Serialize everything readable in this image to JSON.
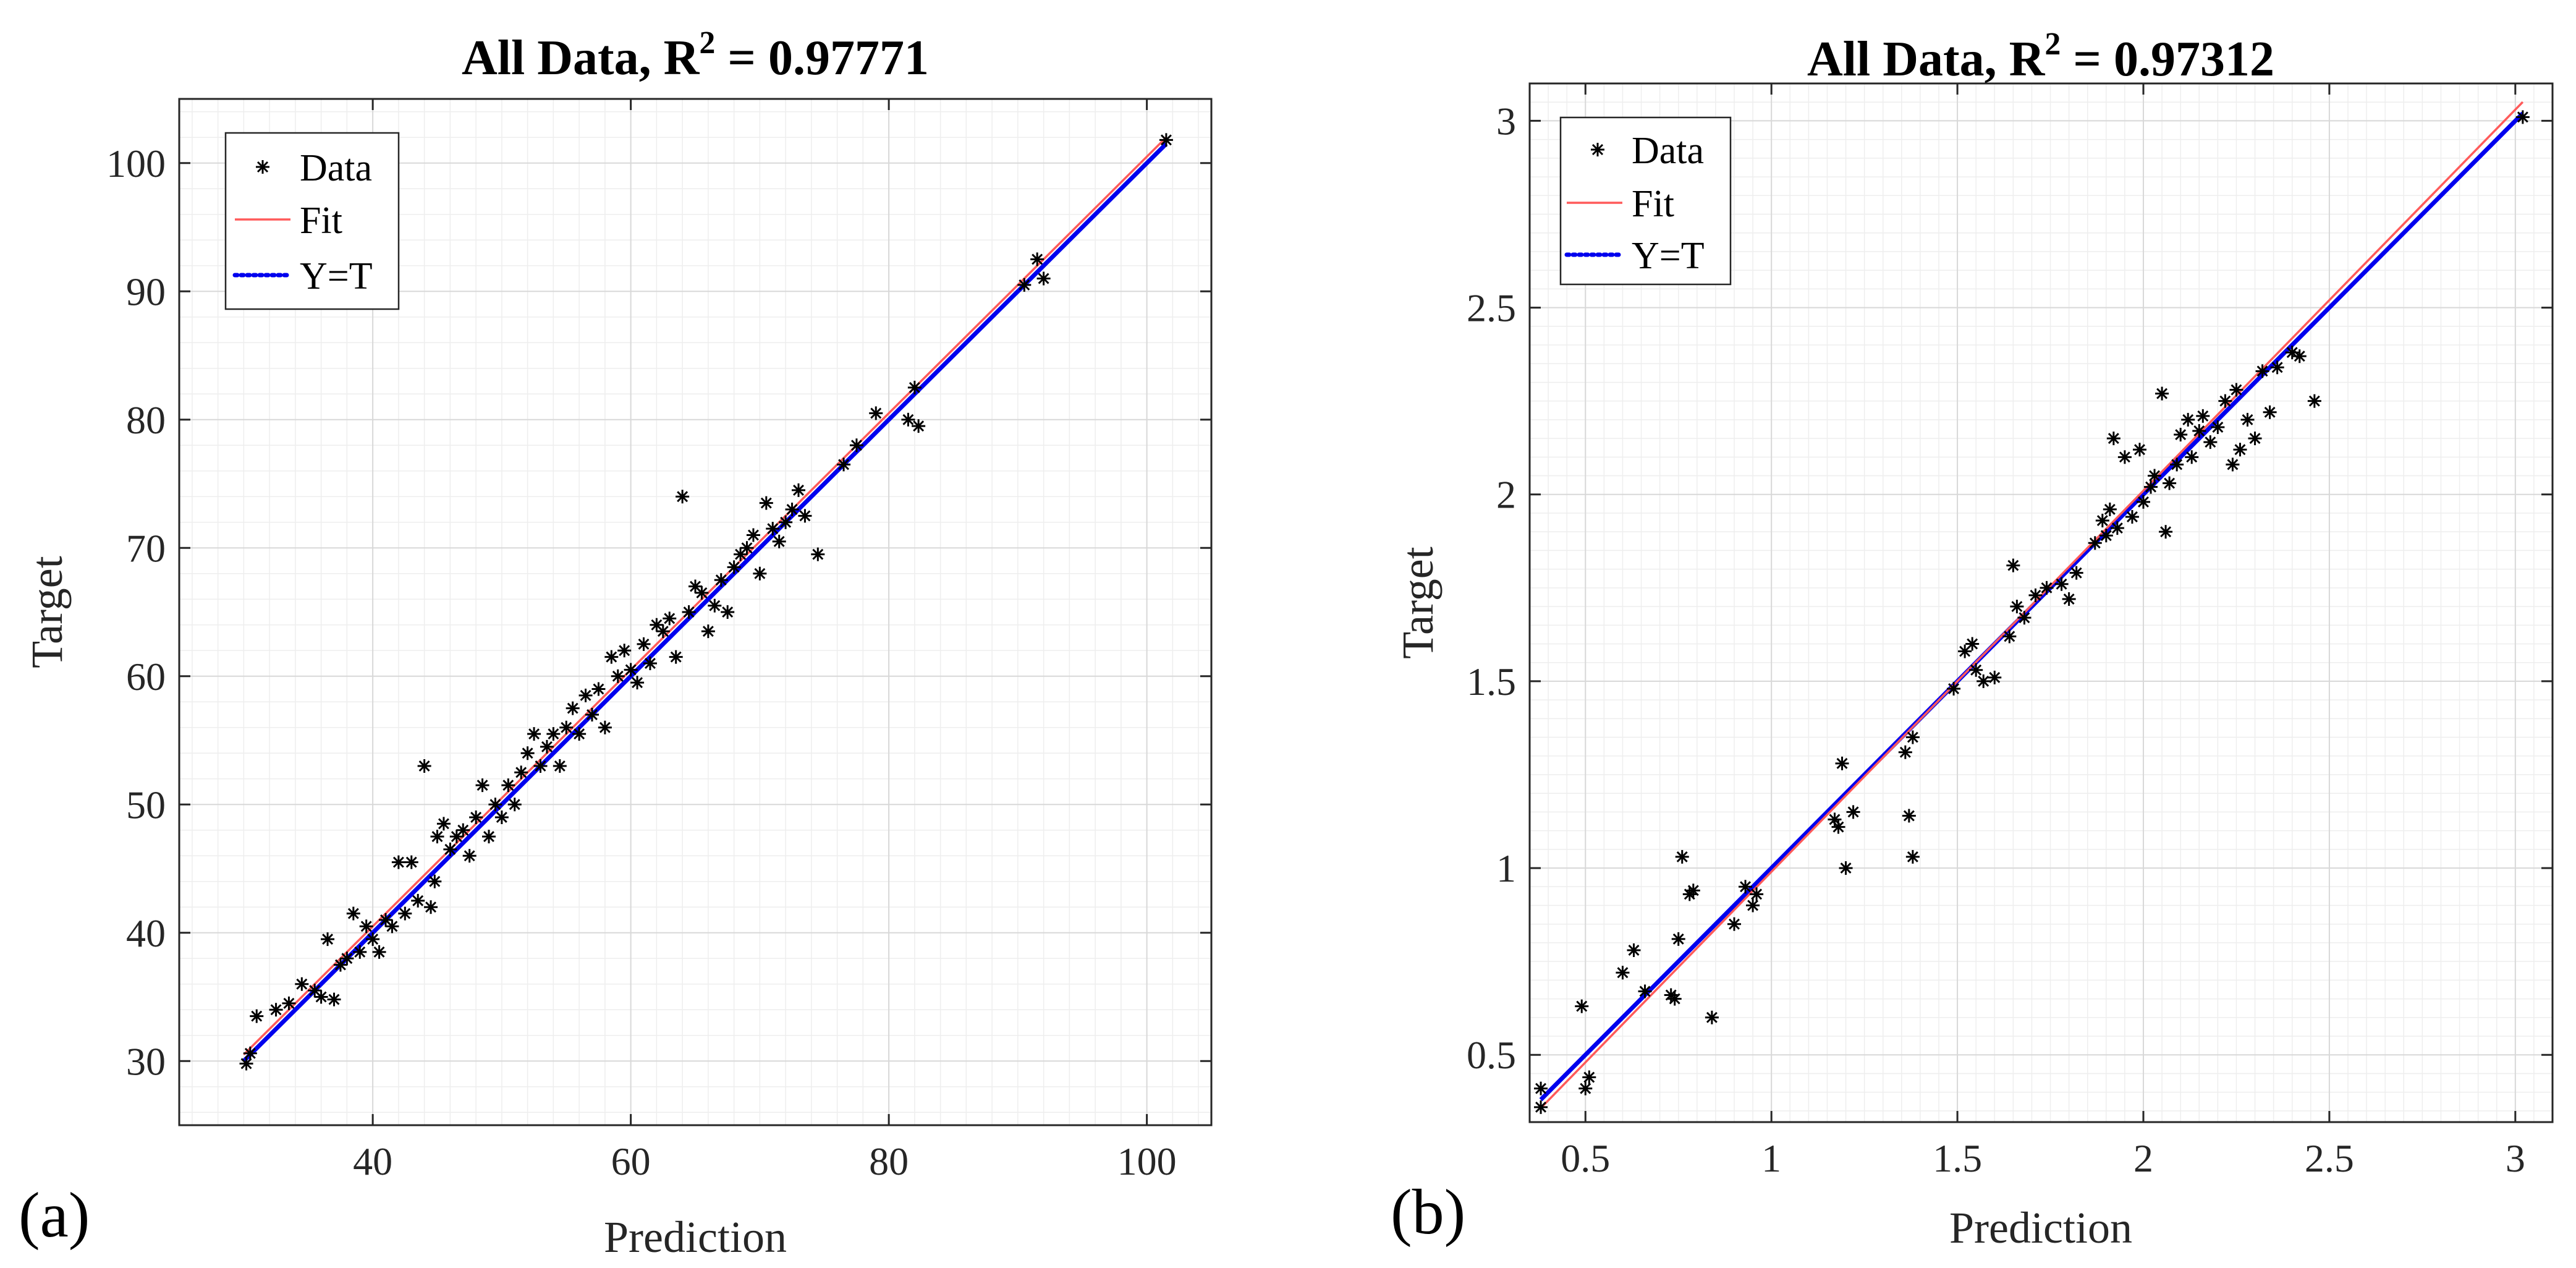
{
  "chart_data": [
    {
      "type": "scatter",
      "panel_label": "(a)",
      "title_prefix": "All Data, R",
      "title_sup": "2",
      "title_suffix": " = 0.97771",
      "xlabel": "Prediction",
      "ylabel": "Target",
      "xlim": [
        25,
        105
      ],
      "ylim": [
        25,
        105
      ],
      "xticks": [
        40,
        60,
        80,
        100
      ],
      "yticks": [
        30,
        40,
        50,
        60,
        70,
        80,
        90,
        100
      ],
      "legend": [
        "Data",
        "Fit",
        "Y=T"
      ],
      "legend_position": "top-left",
      "fit": {
        "slope": 1.0,
        "intercept": 0.5
      },
      "identity_range": [
        30,
        101.5
      ],
      "series": [
        {
          "name": "Data",
          "points": [
            [
              30.2,
              29.8
            ],
            [
              30.5,
              30.6
            ],
            [
              31.0,
              33.5
            ],
            [
              32.5,
              34.0
            ],
            [
              33.5,
              34.5
            ],
            [
              34.5,
              36.0
            ],
            [
              35.5,
              35.5
            ],
            [
              36.0,
              35.0
            ],
            [
              36.5,
              39.5
            ],
            [
              37.0,
              34.8
            ],
            [
              37.5,
              37.5
            ],
            [
              38.0,
              38.0
            ],
            [
              38.5,
              41.5
            ],
            [
              39.0,
              38.5
            ],
            [
              39.5,
              40.5
            ],
            [
              40.0,
              39.5
            ],
            [
              40.5,
              38.5
            ],
            [
              41.0,
              41.0
            ],
            [
              41.5,
              40.5
            ],
            [
              42.0,
              45.5
            ],
            [
              42.5,
              41.5
            ],
            [
              43.0,
              45.5
            ],
            [
              43.5,
              42.5
            ],
            [
              44.0,
              53.0
            ],
            [
              44.5,
              42.0
            ],
            [
              44.8,
              44.0
            ],
            [
              45.0,
              47.5
            ],
            [
              45.5,
              48.5
            ],
            [
              46.0,
              46.5
            ],
            [
              46.5,
              47.5
            ],
            [
              47.0,
              48.0
            ],
            [
              47.5,
              46.0
            ],
            [
              48.0,
              49.0
            ],
            [
              48.5,
              51.5
            ],
            [
              49.0,
              47.5
            ],
            [
              49.5,
              50.0
            ],
            [
              50.0,
              49.0
            ],
            [
              50.5,
              51.5
            ],
            [
              51.0,
              50.0
            ],
            [
              51.5,
              52.5
            ],
            [
              52.0,
              54.0
            ],
            [
              52.5,
              55.5
            ],
            [
              53.0,
              53.0
            ],
            [
              53.5,
              54.5
            ],
            [
              54.0,
              55.5
            ],
            [
              54.5,
              53.0
            ],
            [
              55.0,
              56.0
            ],
            [
              55.5,
              57.5
            ],
            [
              56.0,
              55.5
            ],
            [
              56.5,
              58.5
            ],
            [
              57.0,
              57.0
            ],
            [
              57.5,
              59.0
            ],
            [
              58.0,
              56.0
            ],
            [
              58.5,
              61.5
            ],
            [
              59.0,
              60.0
            ],
            [
              59.5,
              62.0
            ],
            [
              60.0,
              60.5
            ],
            [
              60.5,
              59.5
            ],
            [
              61.0,
              62.5
            ],
            [
              61.5,
              61.0
            ],
            [
              62.0,
              64.0
            ],
            [
              62.5,
              63.5
            ],
            [
              63.0,
              64.5
            ],
            [
              63.5,
              61.5
            ],
            [
              64.0,
              74.0
            ],
            [
              64.5,
              65.0
            ],
            [
              65.0,
              67.0
            ],
            [
              65.5,
              66.5
            ],
            [
              66.0,
              63.5
            ],
            [
              66.5,
              65.5
            ],
            [
              67.0,
              67.5
            ],
            [
              67.5,
              65.0
            ],
            [
              68.0,
              68.5
            ],
            [
              68.5,
              69.5
            ],
            [
              69.0,
              70.0
            ],
            [
              69.5,
              71.0
            ],
            [
              70.0,
              68.0
            ],
            [
              70.5,
              73.5
            ],
            [
              71.0,
              71.5
            ],
            [
              71.5,
              70.5
            ],
            [
              72.0,
              72.0
            ],
            [
              72.5,
              73.0
            ],
            [
              73.0,
              74.5
            ],
            [
              73.5,
              72.5
            ],
            [
              74.5,
              69.5
            ],
            [
              76.5,
              76.5
            ],
            [
              77.5,
              78.0
            ],
            [
              79.0,
              80.5
            ],
            [
              81.5,
              80.0
            ],
            [
              82.0,
              82.5
            ],
            [
              82.3,
              79.5
            ],
            [
              90.5,
              90.5
            ],
            [
              91.5,
              92.5
            ],
            [
              92.0,
              91.0
            ],
            [
              101.5,
              101.8
            ]
          ]
        }
      ]
    },
    {
      "type": "scatter",
      "panel_label": "(b)",
      "title_prefix": "All Data, R",
      "title_sup": "2",
      "title_suffix": " = 0.97312",
      "xlabel": "Prediction",
      "ylabel": "Target",
      "xlim": [
        0.35,
        3.1
      ],
      "ylim": [
        0.32,
        3.1
      ],
      "xticks": [
        0.5,
        1,
        1.5,
        2,
        2.5,
        3
      ],
      "xtick_labels": [
        "0.5",
        "1",
        "1.5",
        "2",
        "2.5",
        "3"
      ],
      "yticks": [
        0.5,
        1,
        1.5,
        2,
        2.5,
        3
      ],
      "ytick_labels": [
        "0.5",
        "1",
        "1.5",
        "2",
        "2.5",
        "3"
      ],
      "legend": [
        "Data",
        "Fit",
        "Y=T"
      ],
      "legend_position": "top-left",
      "fit": {
        "slope": 1.02,
        "intercept": -0.03
      },
      "identity_range": [
        0.38,
        3.02
      ],
      "series": [
        {
          "name": "Data",
          "points": [
            [
              0.38,
              0.36
            ],
            [
              0.38,
              0.41
            ],
            [
              0.49,
              0.63
            ],
            [
              0.5,
              0.41
            ],
            [
              0.51,
              0.44
            ],
            [
              0.6,
              0.72
            ],
            [
              0.63,
              0.78
            ],
            [
              0.66,
              0.67
            ],
            [
              0.73,
              0.66
            ],
            [
              0.74,
              0.65
            ],
            [
              0.75,
              0.81
            ],
            [
              0.76,
              1.03
            ],
            [
              0.78,
              0.93
            ],
            [
              0.79,
              0.94
            ],
            [
              0.84,
              0.6
            ],
            [
              0.9,
              0.85
            ],
            [
              0.93,
              0.95
            ],
            [
              0.95,
              0.9
            ],
            [
              0.96,
              0.93
            ],
            [
              1.17,
              1.13
            ],
            [
              1.18,
              1.11
            ],
            [
              1.19,
              1.28
            ],
            [
              1.2,
              1.0
            ],
            [
              1.22,
              1.15
            ],
            [
              1.36,
              1.31
            ],
            [
              1.37,
              1.14
            ],
            [
              1.38,
              1.03
            ],
            [
              1.38,
              1.35
            ],
            [
              1.49,
              1.48
            ],
            [
              1.52,
              1.58
            ],
            [
              1.54,
              1.6
            ],
            [
              1.55,
              1.53
            ],
            [
              1.57,
              1.5
            ],
            [
              1.6,
              1.51
            ],
            [
              1.64,
              1.62
            ],
            [
              1.65,
              1.81
            ],
            [
              1.66,
              1.7
            ],
            [
              1.68,
              1.67
            ],
            [
              1.71,
              1.73
            ],
            [
              1.74,
              1.75
            ],
            [
              1.78,
              1.76
            ],
            [
              1.8,
              1.72
            ],
            [
              1.82,
              1.79
            ],
            [
              1.87,
              1.87
            ],
            [
              1.89,
              1.93
            ],
            [
              1.9,
              1.89
            ],
            [
              1.91,
              1.96
            ],
            [
              1.92,
              2.15
            ],
            [
              1.93,
              1.91
            ],
            [
              1.95,
              2.1
            ],
            [
              1.97,
              1.94
            ],
            [
              1.99,
              2.12
            ],
            [
              2.0,
              1.98
            ],
            [
              2.02,
              2.02
            ],
            [
              2.03,
              2.05
            ],
            [
              2.05,
              2.27
            ],
            [
              2.06,
              1.9
            ],
            [
              2.07,
              2.03
            ],
            [
              2.09,
              2.08
            ],
            [
              2.1,
              2.16
            ],
            [
              2.12,
              2.2
            ],
            [
              2.13,
              2.1
            ],
            [
              2.15,
              2.17
            ],
            [
              2.16,
              2.21
            ],
            [
              2.18,
              2.14
            ],
            [
              2.2,
              2.18
            ],
            [
              2.22,
              2.25
            ],
            [
              2.24,
              2.08
            ],
            [
              2.25,
              2.28
            ],
            [
              2.26,
              2.12
            ],
            [
              2.28,
              2.2
            ],
            [
              2.3,
              2.15
            ],
            [
              2.32,
              2.33
            ],
            [
              2.34,
              2.22
            ],
            [
              2.36,
              2.34
            ],
            [
              2.4,
              2.38
            ],
            [
              2.42,
              2.37
            ],
            [
              2.46,
              2.25
            ],
            [
              3.02,
              3.01
            ]
          ]
        }
      ]
    }
  ]
}
